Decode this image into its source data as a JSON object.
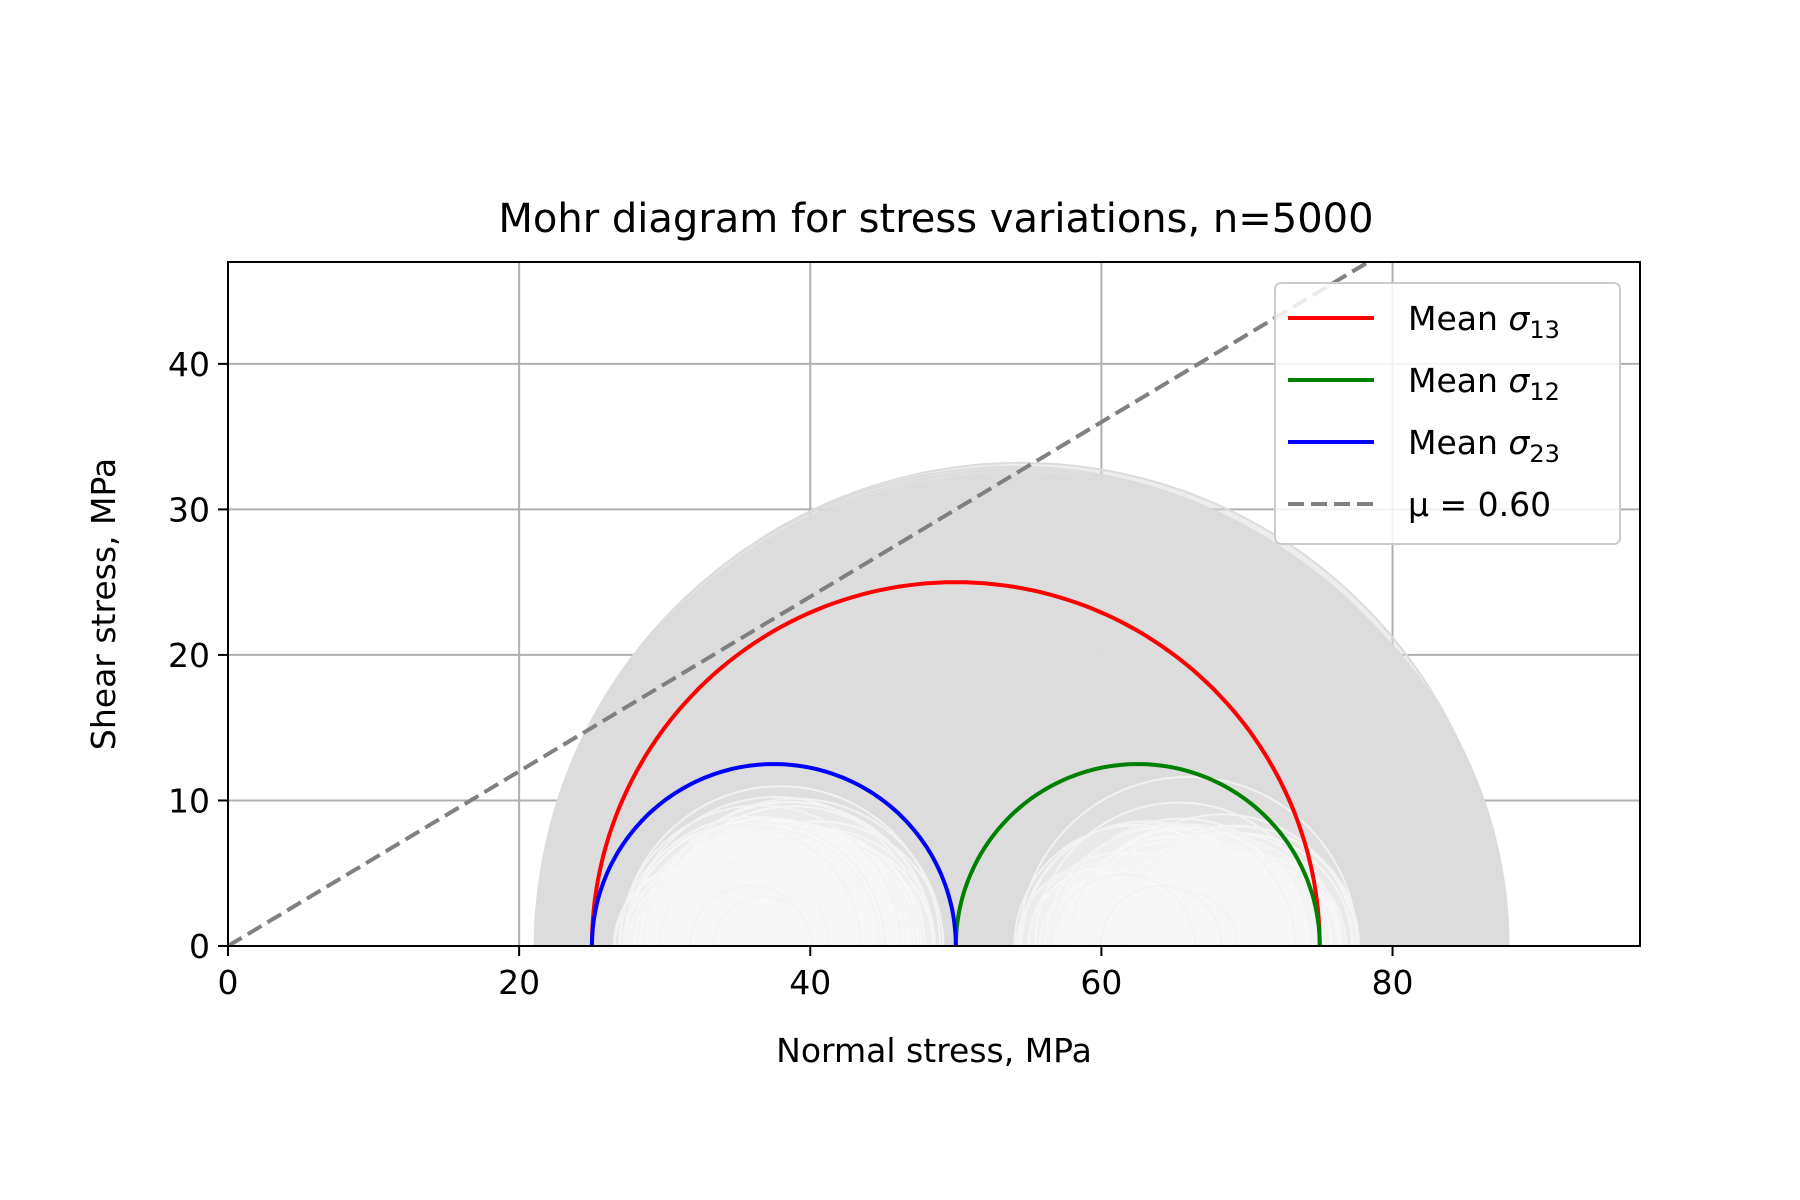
{
  "chart_data": {
    "type": "line",
    "title": "Mohr diagram for stress variations, n=5000",
    "xlabel": "Normal stress, MPa",
    "ylabel": "Shear stress, MPa",
    "xlim": [
      0,
      97
    ],
    "ylim": [
      0,
      47
    ],
    "x_ticks": [
      "0",
      "20",
      "40",
      "60",
      "80"
    ],
    "y_ticks": [
      "0",
      "10",
      "20",
      "30",
      "40"
    ],
    "grid": true,
    "legend_position": "top-right",
    "colors": {
      "sigma13": "#ff0000",
      "sigma12": "#008000",
      "sigma23": "#0000ff",
      "friction": "#808080",
      "variations": "#dcdcdc"
    },
    "series": [
      {
        "key": "sigma13",
        "name": "Mean σ13",
        "legend_main": "Mean ",
        "legend_symbol": "σ",
        "legend_sub": "13",
        "kind": "mohr_circle",
        "sigma_min": 25,
        "sigma_max": 75
      },
      {
        "key": "sigma12",
        "name": "Mean σ12",
        "legend_main": "Mean ",
        "legend_symbol": "σ",
        "legend_sub": "12",
        "kind": "mohr_circle",
        "sigma_min": 50,
        "sigma_max": 75
      },
      {
        "key": "sigma23",
        "name": "Mean σ23",
        "legend_main": "Mean ",
        "legend_symbol": "σ",
        "legend_sub": "23",
        "kind": "mohr_circle",
        "sigma_min": 25,
        "sigma_max": 50
      },
      {
        "key": "friction",
        "name": "μ = 0.60",
        "legend_main": "μ = 0.60",
        "kind": "friction_line",
        "mu": 0.6,
        "style": "dashed"
      }
    ],
    "variations": {
      "count": 5000,
      "sigma1_range": [
        74,
        88
      ],
      "sigma3_range": [
        21,
        29
      ],
      "sigma2_range": [
        44,
        57
      ]
    }
  }
}
